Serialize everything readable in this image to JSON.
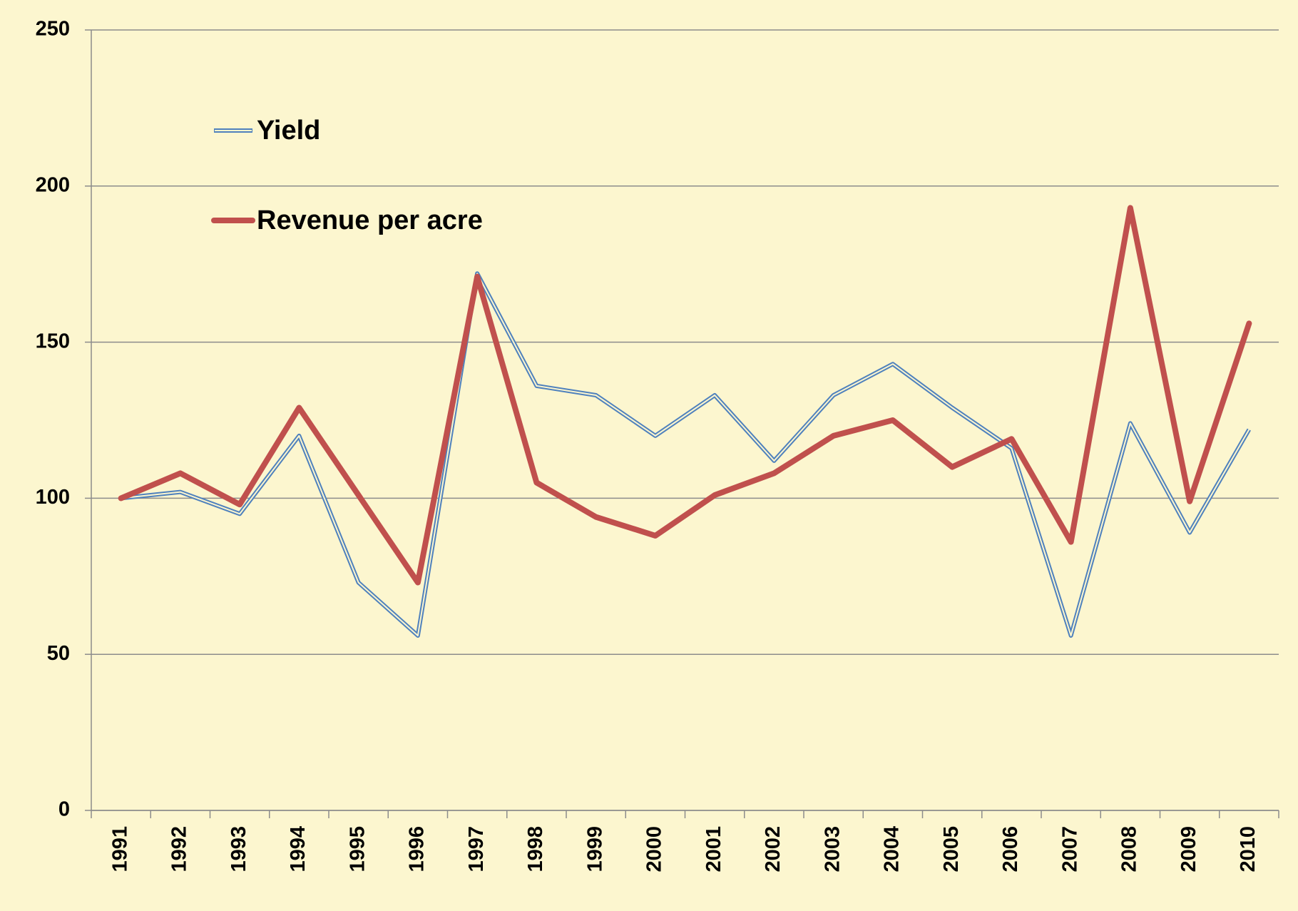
{
  "chart_data": {
    "type": "line",
    "categories": [
      "1991",
      "1992",
      "1993",
      "1994",
      "1995",
      "1996",
      "1997",
      "1998",
      "1999",
      "2000",
      "2001",
      "2002",
      "2003",
      "2004",
      "2005",
      "2006",
      "2007",
      "2008",
      "2009",
      "2010"
    ],
    "series": [
      {
        "name": "Yield",
        "color": "#4f81bd",
        "double": true,
        "values": [
          100,
          102,
          95,
          120,
          73,
          56,
          172,
          136,
          133,
          120,
          133,
          112,
          133,
          143,
          129,
          116,
          56,
          124,
          89,
          122
        ]
      },
      {
        "name": "Revenue per acre",
        "color": "#c0504d",
        "double": false,
        "values": [
          100,
          108,
          98,
          129,
          101,
          73,
          171,
          105,
          94,
          88,
          101,
          108,
          120,
          125,
          110,
          119,
          86,
          193,
          99,
          156
        ]
      }
    ],
    "ylim": [
      0,
      250
    ],
    "yticks": [
      0,
      50,
      100,
      150,
      200,
      250
    ],
    "grid": true,
    "legend": "top-left"
  }
}
